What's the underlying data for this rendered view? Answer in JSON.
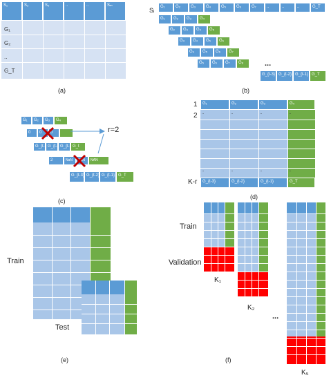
{
  "panel_a": {
    "header": [
      "S₁",
      "S₂",
      "S₃",
      "..",
      "..",
      "Sₘ"
    ],
    "rows": [
      "G₁",
      "G₂",
      "..",
      "G_T"
    ],
    "caption": "(a)"
  },
  "panel_b": {
    "side_label": "Sᵢ",
    "row1": [
      "G₁",
      "G₂",
      "G₃",
      "G₄",
      "G₅",
      "G₆",
      "G₇",
      "..",
      "..",
      "..",
      "G_T"
    ],
    "row2": [
      "G₁",
      "G₂",
      "G₃",
      "G₄"
    ],
    "row3": [
      "G₂",
      "G₃",
      "G₄",
      "G₅"
    ],
    "row4": [
      "G₃",
      "G₄",
      "G₅",
      "G₆"
    ],
    "row5": [
      "G₄",
      "G₅",
      "G₆",
      "G₇"
    ],
    "row6": [
      "G₅",
      "G₆",
      "G₇",
      "G₈"
    ],
    "dots": "...",
    "last_row": [
      "G_{t-3}",
      "G_{t-2}",
      "G_{t-1}",
      "G_T"
    ],
    "caption": "(b)"
  },
  "panel_c": {
    "row1": [
      "G₁",
      "G₂",
      "G₃",
      "G₄"
    ],
    "row2": [
      "0",
      "0",
      "0",
      ""
    ],
    "row3": [
      "G_{t-3}",
      "G_{t-2}",
      "G_{t-1}",
      "G_t"
    ],
    "row4": [
      "2",
      "NaN",
      "NaN",
      "NAN"
    ],
    "row5": [
      "G_{t-3}",
      "G_{t-2}",
      "G_{t-1}",
      "G_T"
    ],
    "r_label": "r=2",
    "caption": "(c)"
  },
  "panel_d": {
    "row_labels": [
      "1",
      "2",
      "K-r"
    ],
    "header": [
      "G₁",
      "G₂",
      "G₃",
      "G₄"
    ],
    "row2": [
      "..",
      "..",
      "..",
      ".."
    ],
    "last_row": [
      "..",
      "..",
      "..",
      ".."
    ],
    "bottom": [
      "G_{t-3}",
      "G_{t-2}",
      "G_{t-1}",
      "G_T"
    ],
    "caption": "(d)"
  },
  "panel_e": {
    "train_label": "Train",
    "test_label": "Test",
    "caption": "(e)"
  },
  "panel_f": {
    "train_label": "Train",
    "validation_label": "Validation",
    "k1": "K₁",
    "k2": "K₂",
    "k5": "K₅",
    "dots": "...",
    "caption": "(f)"
  },
  "colors": {
    "header_blue": "#5b9bd5",
    "light_blue": "#a9c6e8",
    "green": "#70ad47",
    "red": "#ff0000"
  }
}
